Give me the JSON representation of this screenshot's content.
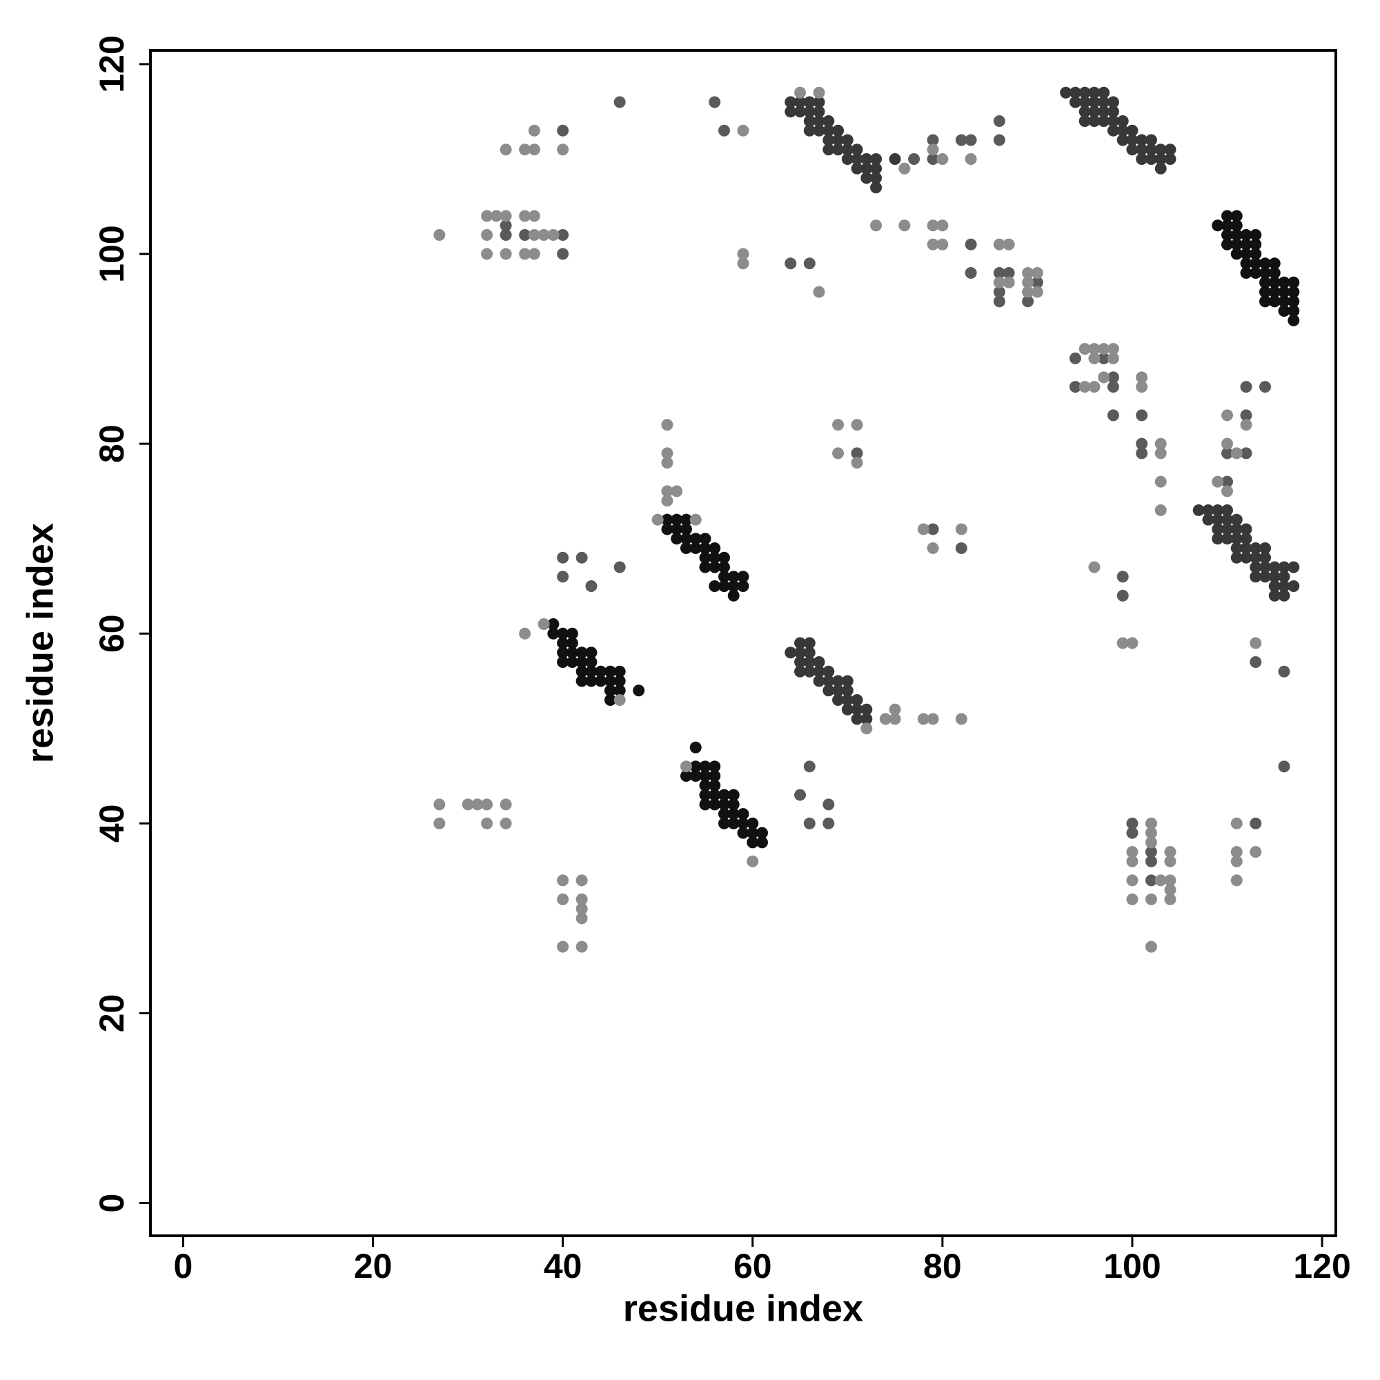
{
  "chart_data": {
    "type": "scatter",
    "xlabel": "residue index",
    "ylabel": "residue index",
    "xlim": [
      -3.45,
      121.45
    ],
    "ylim": [
      -3.45,
      121.45
    ],
    "xticks": [
      0,
      20,
      40,
      60,
      80,
      100,
      120
    ],
    "yticks": [
      0,
      20,
      40,
      60,
      80,
      100,
      120
    ],
    "series": [
      {
        "color": "#111111",
        "x": [
          39,
          39,
          40,
          40,
          41,
          41,
          40,
          41,
          42,
          40,
          41,
          42,
          43,
          42,
          43,
          43,
          44,
          42,
          43,
          44,
          45,
          45,
          46,
          45,
          46,
          46,
          45,
          48,
          51,
          52,
          53,
          51,
          52,
          53,
          52,
          53,
          54,
          55,
          53,
          54,
          55,
          56,
          55,
          56,
          57,
          55,
          56,
          57,
          58,
          57,
          58,
          59,
          56,
          57,
          59,
          58,
          54,
          54,
          55,
          56,
          53,
          54,
          55,
          55,
          56,
          56,
          55,
          56,
          57,
          58,
          56,
          57,
          58,
          55,
          57,
          58,
          59,
          57,
          58,
          59,
          60,
          59,
          60,
          61,
          60,
          61,
          109,
          110,
          111,
          110,
          111,
          110,
          111,
          112,
          113,
          110,
          111,
          112,
          113,
          111,
          112,
          113,
          112,
          113,
          114,
          115,
          112,
          113,
          114,
          115,
          114,
          115,
          116,
          117,
          114,
          115,
          116,
          117,
          114,
          115,
          116,
          117,
          116,
          117,
          117
        ],
        "values": [
          61,
          60,
          60,
          59,
          60,
          59,
          58,
          58,
          58,
          57,
          57,
          57,
          58,
          56,
          57,
          56,
          56,
          55,
          55,
          55,
          55,
          56,
          56,
          54,
          55,
          54,
          53,
          54,
          72,
          72,
          72,
          71,
          71,
          71,
          70,
          70,
          70,
          70,
          69,
          69,
          69,
          69,
          68,
          68,
          68,
          67,
          67,
          67,
          66,
          66,
          65,
          66,
          65,
          65,
          65,
          64,
          48,
          46,
          46,
          46,
          45,
          45,
          45,
          44,
          44,
          45,
          43,
          43,
          43,
          43,
          42,
          42,
          42,
          42,
          41,
          41,
          41,
          40,
          40,
          40,
          40,
          39,
          39,
          39,
          38,
          38,
          103,
          104,
          104,
          103,
          103,
          102,
          102,
          102,
          102,
          101,
          101,
          101,
          101,
          100,
          100,
          100,
          99,
          99,
          99,
          99,
          98,
          98,
          98,
          98,
          97,
          97,
          97,
          97,
          96,
          96,
          96,
          96,
          95,
          95,
          95,
          95,
          94,
          94,
          93
        ]
      },
      {
        "color": "#383838",
        "x": [
          64,
          65,
          66,
          65,
          66,
          65,
          66,
          67,
          65,
          66,
          67,
          68,
          67,
          68,
          69,
          70,
          68,
          69,
          70,
          69,
          70,
          71,
          70,
          71,
          72,
          71,
          72,
          64,
          65,
          66,
          67,
          65,
          66,
          67,
          66,
          67,
          68,
          66,
          67,
          68,
          69,
          68,
          69,
          70,
          68,
          69,
          70,
          71,
          70,
          71,
          72,
          73,
          71,
          72,
          73,
          72,
          73,
          73,
          64,
          75,
          93,
          94,
          95,
          96,
          97,
          94,
          95,
          96,
          97,
          98,
          95,
          96,
          97,
          98,
          96,
          97,
          98,
          99,
          95,
          98,
          99,
          100,
          99,
          100,
          101,
          102,
          100,
          101,
          102,
          103,
          104,
          101,
          102,
          103,
          104,
          103,
          107,
          108,
          109,
          110,
          108,
          109,
          110,
          111,
          109,
          110,
          111,
          112,
          109,
          110,
          111,
          112,
          111,
          112,
          113,
          114,
          111,
          112,
          113,
          114,
          113,
          114,
          115,
          116,
          113,
          114,
          115,
          116,
          117,
          115,
          116,
          117,
          115,
          116
        ],
        "values": [
          58,
          59,
          59,
          58,
          58,
          57,
          57,
          57,
          56,
          56,
          56,
          56,
          55,
          55,
          55,
          55,
          54,
          54,
          54,
          53,
          53,
          53,
          52,
          52,
          52,
          51,
          51,
          116,
          116,
          116,
          116,
          115,
          115,
          115,
          114,
          114,
          114,
          113,
          113,
          113,
          113,
          112,
          112,
          112,
          111,
          111,
          111,
          111,
          110,
          110,
          110,
          110,
          109,
          109,
          109,
          108,
          108,
          107,
          115,
          110,
          117,
          117,
          117,
          117,
          117,
          116,
          116,
          116,
          116,
          116,
          115,
          115,
          115,
          115,
          114,
          114,
          114,
          114,
          114,
          113,
          113,
          113,
          112,
          112,
          112,
          112,
          111,
          111,
          111,
          111,
          111,
          110,
          110,
          110,
          110,
          109,
          73,
          73,
          73,
          73,
          72,
          72,
          72,
          72,
          71,
          71,
          71,
          71,
          70,
          70,
          70,
          70,
          69,
          69,
          69,
          69,
          68,
          68,
          68,
          68,
          67,
          67,
          67,
          67,
          66,
          66,
          66,
          66,
          67,
          65,
          65,
          65,
          64,
          64
        ]
      },
      {
        "color": "#5a5a5a",
        "x": [
          40,
          56,
          57,
          46,
          40,
          40,
          36,
          34,
          66,
          64,
          79,
          82,
          83,
          86,
          86,
          83,
          83,
          86,
          87,
          86,
          86,
          89,
          90,
          94,
          94,
          97,
          98,
          98,
          98,
          101,
          101,
          101,
          99,
          99,
          110,
          110,
          112,
          114,
          112,
          112,
          113,
          116,
          116,
          71,
          79,
          82,
          40,
          42,
          40,
          43,
          46,
          66,
          65,
          68,
          66,
          68,
          100,
          100,
          102,
          102,
          102,
          113,
          77,
          79,
          34
        ],
        "values": [
          113,
          116,
          113,
          116,
          102,
          100,
          102,
          102,
          99,
          99,
          112,
          112,
          112,
          114,
          112,
          101,
          98,
          98,
          98,
          96,
          95,
          95,
          97,
          89,
          86,
          89,
          87,
          86,
          83,
          83,
          80,
          79,
          66,
          64,
          79,
          76,
          86,
          86,
          83,
          79,
          57,
          56,
          46,
          79,
          71,
          69,
          68,
          68,
          66,
          65,
          67,
          46,
          43,
          42,
          40,
          40,
          40,
          39,
          37,
          36,
          34,
          40,
          110,
          110,
          103
        ]
      },
      {
        "color": "#8c8c8c",
        "x": [
          37,
          36,
          37,
          34,
          40,
          59,
          27,
          32,
          33,
          34,
          36,
          37,
          32,
          37,
          38,
          39,
          32,
          34,
          36,
          37,
          59,
          59,
          67,
          79,
          80,
          83,
          73,
          76,
          79,
          80,
          79,
          80,
          86,
          87,
          86,
          87,
          89,
          90,
          89,
          89,
          90,
          95,
          96,
          96,
          97,
          98,
          98,
          96,
          97,
          95,
          101,
          101,
          103,
          103,
          103,
          103,
          96,
          99,
          100,
          110,
          110,
          111,
          109,
          110,
          112,
          113,
          69,
          71,
          69,
          71,
          78,
          79,
          82,
          27,
          27,
          30,
          31,
          32,
          34,
          32,
          34,
          40,
          42,
          40,
          42,
          42,
          42,
          40,
          42,
          100,
          100,
          100,
          100,
          102,
          102,
          102,
          102,
          102,
          103,
          104,
          104,
          104,
          104,
          104,
          111,
          111,
          111,
          111,
          113,
          60,
          53,
          38,
          36,
          46,
          54,
          51,
          52,
          51,
          51,
          51,
          50,
          51,
          72,
          74,
          75,
          75,
          78,
          79,
          82,
          65,
          67,
          76
        ],
        "values": [
          113,
          111,
          111,
          111,
          111,
          113,
          102,
          104,
          104,
          104,
          104,
          104,
          102,
          102,
          102,
          102,
          100,
          100,
          100,
          100,
          100,
          99,
          96,
          111,
          110,
          110,
          103,
          103,
          103,
          103,
          101,
          101,
          101,
          101,
          97,
          97,
          98,
          98,
          97,
          96,
          96,
          90,
          90,
          89,
          90,
          90,
          89,
          86,
          87,
          86,
          87,
          86,
          80,
          79,
          76,
          73,
          67,
          59,
          59,
          83,
          80,
          79,
          76,
          75,
          82,
          59,
          82,
          82,
          79,
          78,
          71,
          69,
          71,
          42,
          40,
          42,
          42,
          42,
          42,
          40,
          40,
          34,
          34,
          32,
          32,
          31,
          30,
          27,
          27,
          37,
          36,
          34,
          32,
          40,
          39,
          38,
          32,
          27,
          34,
          37,
          36,
          34,
          33,
          32,
          40,
          37,
          36,
          34,
          37,
          36,
          46,
          61,
          60,
          53,
          72,
          75,
          75,
          78,
          79,
          82,
          72,
          74,
          50,
          51,
          52,
          51,
          51,
          51,
          51,
          117,
          117,
          109
        ]
      }
    ]
  }
}
